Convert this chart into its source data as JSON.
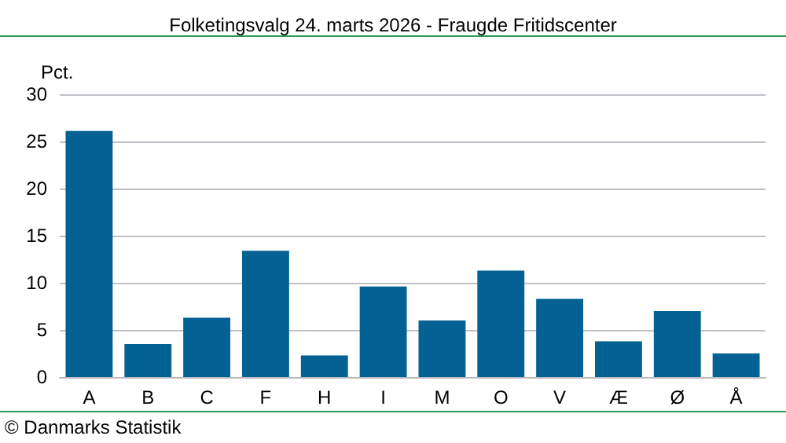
{
  "chart_data": {
    "type": "bar",
    "title": "Folketingsvalg 24. marts 2026 - Fraugde Fritidscenter",
    "ylabel": "Pct.",
    "categories": [
      "A",
      "B",
      "C",
      "F",
      "H",
      "I",
      "M",
      "O",
      "V",
      "Æ",
      "Ø",
      "Å"
    ],
    "values": [
      26.1,
      3.5,
      6.3,
      13.4,
      2.3,
      9.6,
      6.0,
      11.3,
      8.3,
      3.8,
      7.0,
      2.5
    ],
    "color": "#036293",
    "ylim": [
      0,
      30
    ],
    "yticks": [
      0,
      5,
      10,
      15,
      20,
      25,
      30
    ],
    "grid": "y",
    "annotations": [
      "© Danmarks Statistik"
    ]
  }
}
